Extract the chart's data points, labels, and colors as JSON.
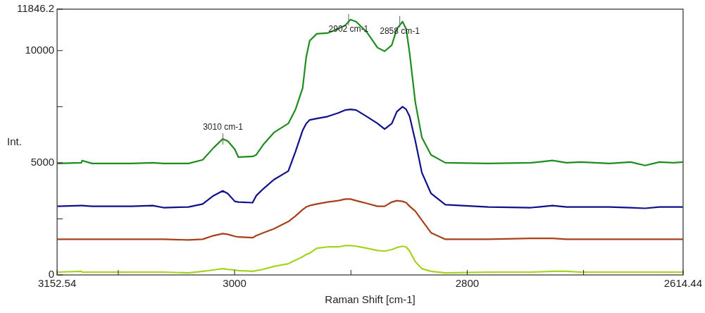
{
  "chart_data": {
    "type": "line",
    "xlabel": "Raman Shift [cm-1]",
    "ylabel": "Int.",
    "x": [
      3152.54,
      3131.7,
      3131.0,
      3122.5,
      3088.7,
      3070.3,
      3061.1,
      3039.6,
      3027.4,
      3018.2,
      3010.2,
      3005.9,
      2999.8,
      2996.7,
      2984.5,
      2981.4,
      2975.3,
      2966.1,
      2953.8,
      2947.6,
      2941.5,
      2938.4,
      2935.4,
      2929.3,
      2920.1,
      2910.9,
      2904.7,
      2900.4,
      2895.5,
      2886.3,
      2877.1,
      2871.0,
      2864.8,
      2860.5,
      2855.6,
      2852.5,
      2849.5,
      2844.6,
      2839.0,
      2831.1,
      2818.8,
      2782.0,
      2745.1,
      2726.7,
      2714.6,
      2702.3,
      2677.8,
      2659.4,
      2647.1,
      2634.8,
      2622.6,
      2614.44
    ],
    "series": [
      {
        "color": "#1f8c1f",
        "values": [
          4970,
          5000,
          5100,
          4970,
          4970,
          5000,
          4970,
          4970,
          5130,
          5660,
          6060,
          5970,
          5600,
          5250,
          5280,
          5350,
          5810,
          6350,
          6750,
          7380,
          8320,
          9720,
          10440,
          10750,
          10780,
          10970,
          11130,
          11380,
          11290,
          10820,
          10130,
          9970,
          10250,
          10970,
          11290,
          10970,
          9880,
          7690,
          6130,
          5350,
          5000,
          4970,
          5000,
          5100,
          5000,
          5030,
          4970,
          5030,
          4880,
          5030,
          5000,
          5030
        ]
      },
      {
        "color": "#10108c",
        "values": [
          3060,
          3090,
          3090,
          3060,
          3060,
          3090,
          3000,
          3030,
          3160,
          3530,
          3750,
          3630,
          3280,
          3250,
          3220,
          3530,
          3840,
          4250,
          4630,
          5500,
          6440,
          6750,
          6910,
          6970,
          7060,
          7220,
          7350,
          7380,
          7350,
          7060,
          6750,
          6500,
          6750,
          7280,
          7500,
          7380,
          7060,
          5970,
          4560,
          3630,
          3130,
          3030,
          3000,
          3090,
          3030,
          3030,
          3030,
          3000,
          2970,
          3030,
          3030,
          3030
        ]
      },
      {
        "color": "#a8401a",
        "values": [
          1590,
          1590,
          1590,
          1590,
          1590,
          1590,
          1590,
          1560,
          1590,
          1750,
          1840,
          1810,
          1720,
          1690,
          1660,
          1750,
          1880,
          2060,
          2380,
          2630,
          2910,
          3030,
          3090,
          3160,
          3250,
          3310,
          3380,
          3380,
          3310,
          3190,
          3060,
          3060,
          3250,
          3310,
          3280,
          3220,
          3060,
          2840,
          2440,
          1880,
          1590,
          1590,
          1630,
          1630,
          1590,
          1590,
          1590,
          1590,
          1590,
          1590,
          1590,
          1590
        ]
      },
      {
        "color": "#a6d41e",
        "values": [
          125,
          160,
          125,
          125,
          125,
          125,
          125,
          90,
          160,
          220,
          280,
          250,
          220,
          190,
          160,
          190,
          250,
          380,
          500,
          660,
          810,
          910,
          970,
          1190,
          1250,
          1250,
          1310,
          1310,
          1280,
          1190,
          1090,
          1060,
          1130,
          1220,
          1280,
          1250,
          1060,
          590,
          280,
          160,
          90,
          125,
          125,
          160,
          160,
          125,
          125,
          125,
          125,
          125,
          125,
          125
        ]
      }
    ],
    "xlim": [
      3152.54,
      2614.44
    ],
    "xticks": [
      3152.54,
      {
        "value": 3100,
        "label": null
      },
      3000,
      {
        "value": 2900,
        "label": null
      },
      2800,
      {
        "value": 2700,
        "label": null
      },
      2614.44
    ],
    "ylim": [
      0,
      11846.2
    ],
    "yticks": [
      0,
      {
        "value": 2500,
        "label": null
      },
      5000,
      {
        "value": 7500,
        "label": null
      },
      10000,
      11846.2
    ],
    "grid": false,
    "legend": false,
    "marker": "none",
    "line_style": "solid",
    "annotations": [
      {
        "text": "3010 cm-1",
        "x": 3010,
        "y": 6060
      },
      {
        "text": "2902 cm-1",
        "x": 2902,
        "y": 11380
      },
      {
        "text": "2858 cm-1",
        "x": 2858,
        "y": 11290
      }
    ]
  }
}
